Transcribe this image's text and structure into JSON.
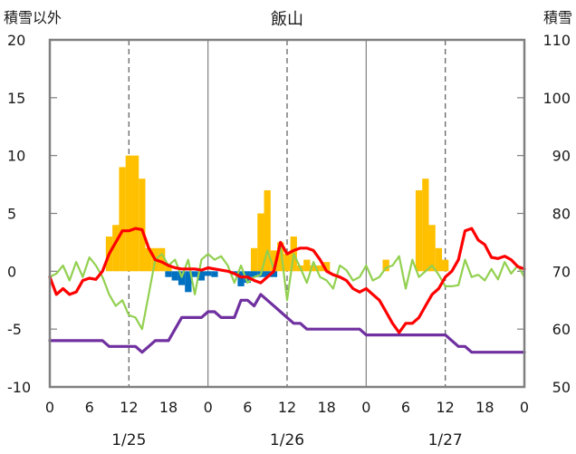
{
  "chart_data": {
    "type": "line",
    "title": "飯山",
    "left_axis_label": "積雪以外",
    "right_axis_label": "積雪",
    "ylim_left": [
      -10,
      20
    ],
    "ylim_right": [
      50,
      110
    ],
    "yticks_left": [
      20,
      15,
      10,
      5,
      0,
      -5,
      -10
    ],
    "yticks_right": [
      110,
      100,
      90,
      80,
      70,
      60,
      50
    ],
    "xlim_hours": [
      0,
      72
    ],
    "xtick_labels": [
      "0",
      "6",
      "12",
      "18",
      "0",
      "6",
      "12",
      "18",
      "0",
      "6",
      "12",
      "18",
      "0"
    ],
    "day_labels": [
      "1/25",
      "1/26",
      "1/27"
    ],
    "grid": "vertical dashed at 12:00, solid at day boundaries",
    "colors": {
      "temperature": "#ff0000",
      "dewpoint": "#92d050",
      "snowfall": "#ffc000",
      "snow_decrease": "#0070c0",
      "snow_depth": "#7030a0",
      "frame": "#808080"
    },
    "series": [
      {
        "key": "temperature",
        "axis": "left",
        "kind": "line",
        "x": [
          0,
          1,
          2,
          3,
          4,
          5,
          6,
          7,
          8,
          9,
          10,
          11,
          12,
          13,
          14,
          15,
          16,
          17,
          18,
          19,
          20,
          21,
          22,
          23,
          24,
          25,
          26,
          27,
          28,
          29,
          30,
          31,
          32,
          33,
          34,
          35,
          36,
          37,
          38,
          39,
          40,
          41,
          42,
          43,
          44,
          45,
          46,
          47,
          48,
          49,
          50,
          51,
          52,
          53,
          54,
          55,
          56,
          57,
          58,
          59,
          60,
          61,
          62,
          63,
          64,
          65,
          66,
          67,
          68,
          69,
          70,
          71,
          72
        ],
        "values": [
          -0.5,
          -2,
          -1.5,
          -2,
          -1.8,
          -0.8,
          -0.6,
          -0.7,
          0,
          1.5,
          2.5,
          3.5,
          3.5,
          3.7,
          3.6,
          2,
          1,
          0.8,
          0.5,
          0.3,
          0.2,
          0.2,
          0.2,
          0.1,
          0.3,
          0.2,
          0.1,
          0,
          -0.2,
          -0.5,
          -0.5,
          -0.8,
          -1,
          -0.5,
          0,
          2.5,
          1.5,
          1.8,
          2,
          2,
          1.8,
          1,
          0,
          -0.3,
          -0.5,
          -0.8,
          -1.5,
          -1.8,
          -1.5,
          -2,
          -2.5,
          -3.5,
          -4.5,
          -5.3,
          -4.5,
          -4.5,
          -4,
          -3,
          -2,
          -1.5,
          -0.5,
          0,
          1,
          3.5,
          3.7,
          2.7,
          2.3,
          1.2,
          1.1,
          1.3,
          1,
          0.4,
          0.2
        ]
      },
      {
        "key": "dewpoint",
        "axis": "left",
        "kind": "line",
        "x": [
          0,
          1,
          2,
          3,
          4,
          5,
          6,
          7,
          8,
          9,
          10,
          11,
          12,
          13,
          14,
          15,
          16,
          17,
          18,
          19,
          20,
          21,
          22,
          23,
          24,
          25,
          26,
          27,
          28,
          29,
          30,
          31,
          32,
          33,
          34,
          35,
          36,
          37,
          38,
          39,
          40,
          41,
          42,
          43,
          44,
          45,
          46,
          47,
          48,
          49,
          50,
          51,
          52,
          53,
          54,
          55,
          56,
          57,
          58,
          59,
          60,
          61,
          62,
          63,
          64,
          65,
          66,
          67,
          68,
          69,
          70,
          71,
          72
        ],
        "values": [
          -0.5,
          -0.2,
          0.5,
          -0.8,
          0.8,
          -0.5,
          1.2,
          0.5,
          -0.5,
          -2,
          -3,
          -2.5,
          -3.8,
          -4,
          -5,
          -2,
          1,
          1.5,
          0.5,
          1,
          -0.5,
          1,
          -2,
          1,
          1.5,
          1,
          1.3,
          0.5,
          -1,
          0.5,
          -1,
          -0.5,
          -0.3,
          1.8,
          0.2,
          2.2,
          -2.5,
          1.5,
          0.3,
          -1,
          0.8,
          -0.5,
          -0.8,
          -1.5,
          0.5,
          0.1,
          -0.8,
          -0.5,
          0.5,
          -0.8,
          -0.5,
          0.3,
          0.5,
          1.3,
          -1.5,
          1,
          -0.5,
          0,
          0.5,
          -0.3,
          -1.3,
          -1.3,
          -1.2,
          1,
          -0.5,
          -0.3,
          -0.8,
          0.2,
          -0.7,
          0.8,
          -0.2,
          0.5,
          -0.5
        ]
      },
      {
        "key": "snowfall",
        "axis": "left",
        "kind": "bar",
        "x": [
          9,
          10,
          11,
          12,
          13,
          14,
          15,
          16,
          17,
          18,
          31,
          32,
          33,
          34,
          35,
          36,
          37,
          38,
          39,
          40,
          41,
          42,
          51,
          56,
          57,
          58,
          59,
          60
        ],
        "values": [
          3,
          4,
          9,
          10,
          10,
          8,
          2,
          2,
          2,
          0.5,
          2,
          5,
          7,
          1.8,
          2.5,
          1.5,
          3,
          0.5,
          1,
          0.5,
          0.5,
          0.8,
          1,
          7,
          8,
          4,
          2,
          1
        ]
      },
      {
        "key": "snow_decrease",
        "axis": "left",
        "kind": "bar",
        "x": [
          18,
          19,
          20,
          21,
          22,
          23,
          24,
          25,
          26,
          27,
          28,
          29,
          30,
          31,
          32,
          33,
          34
        ],
        "values": [
          -0.5,
          -0.8,
          -1.2,
          -1.8,
          -0.5,
          -0.8,
          -0.4,
          -0.5,
          0,
          0,
          -0.3,
          -1.3,
          -1,
          -0.5,
          -0.5,
          -0.5,
          -0.5
        ]
      },
      {
        "key": "snow_depth",
        "axis": "right",
        "kind": "line",
        "x": [
          0,
          1,
          2,
          3,
          4,
          5,
          6,
          7,
          8,
          9,
          10,
          11,
          12,
          13,
          14,
          15,
          16,
          17,
          18,
          19,
          20,
          21,
          22,
          23,
          24,
          25,
          26,
          27,
          28,
          29,
          30,
          31,
          32,
          33,
          34,
          35,
          36,
          37,
          38,
          39,
          40,
          41,
          42,
          43,
          44,
          45,
          46,
          47,
          48,
          49,
          50,
          51,
          52,
          53,
          54,
          55,
          56,
          57,
          58,
          59,
          60,
          61,
          62,
          63,
          64,
          65,
          66,
          67,
          68,
          69,
          70,
          71,
          72
        ],
        "values": [
          58,
          58,
          58,
          58,
          58,
          58,
          58,
          58,
          58,
          57,
          57,
          57,
          57,
          57,
          56,
          57,
          58,
          58,
          58,
          60,
          62,
          62,
          62,
          62,
          63,
          63,
          62,
          62,
          62,
          65,
          65,
          64,
          66,
          65,
          64,
          63,
          62,
          61,
          61,
          60,
          60,
          60,
          60,
          60,
          60,
          60,
          60,
          60,
          59,
          59,
          59,
          59,
          59,
          59,
          59,
          59,
          59,
          59,
          59,
          59,
          59,
          58,
          57,
          57,
          56,
          56,
          56,
          56,
          56,
          56,
          56,
          56,
          56
        ]
      }
    ]
  }
}
